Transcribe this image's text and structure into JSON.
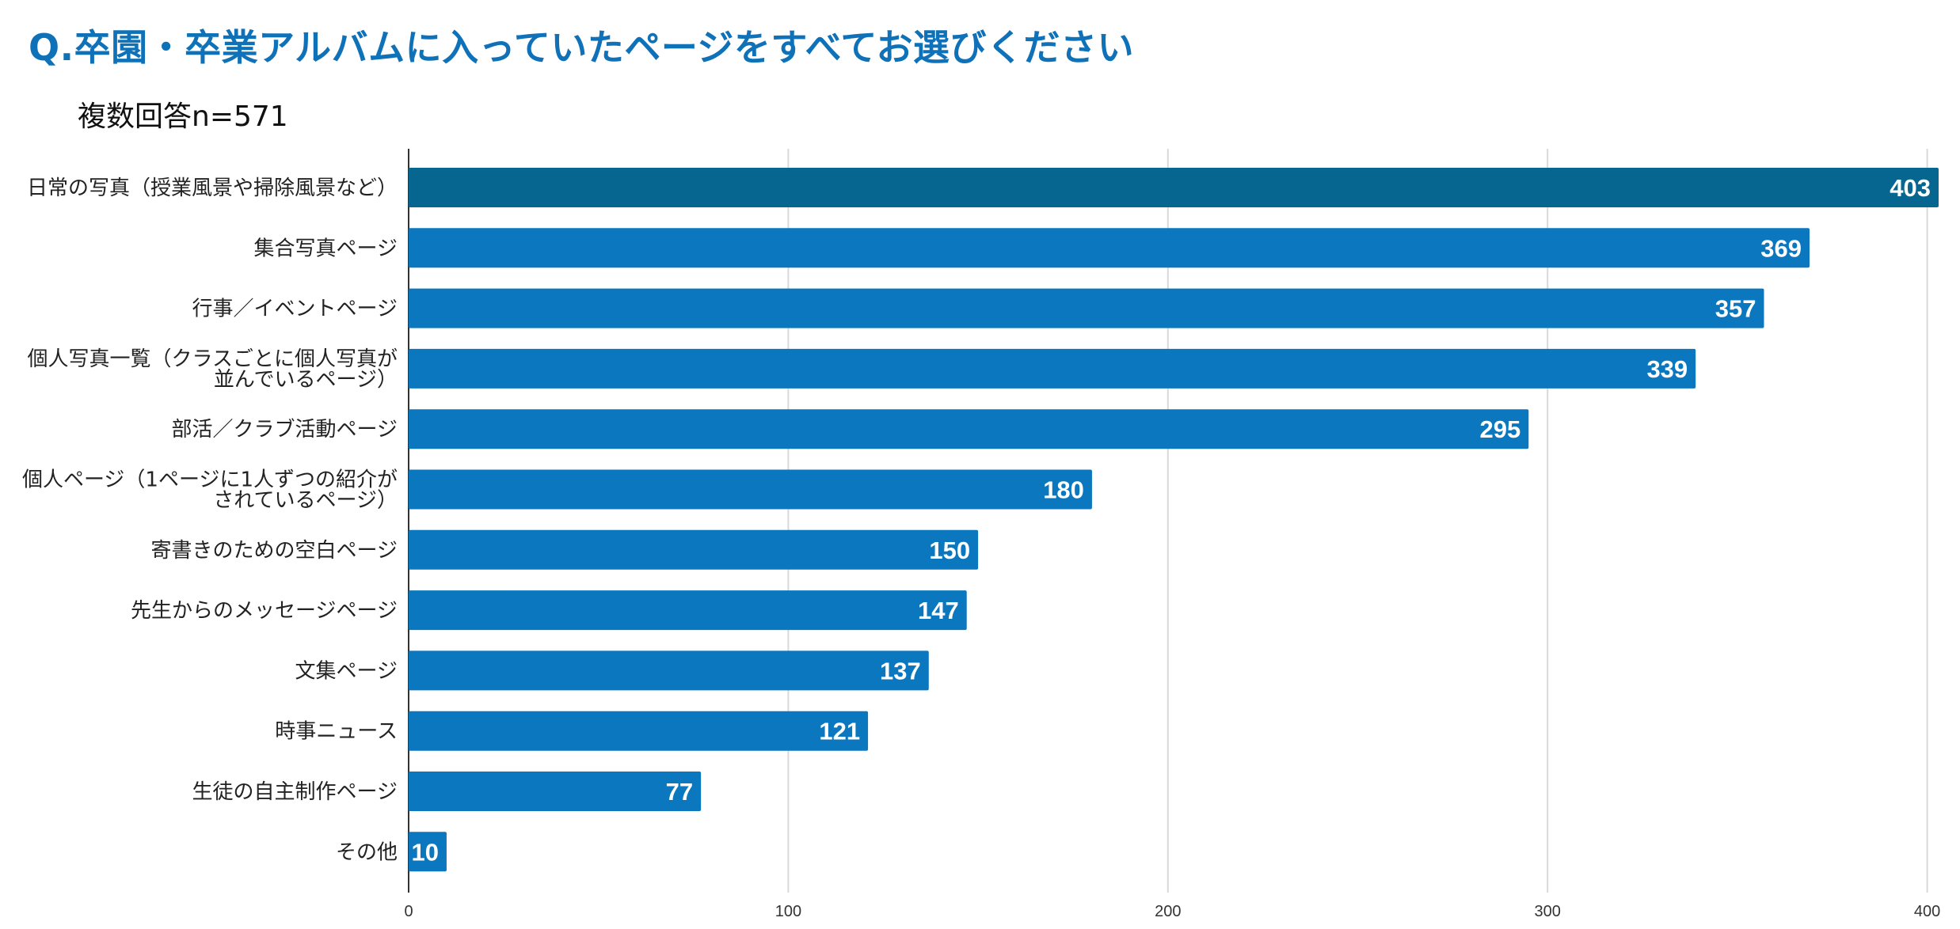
{
  "chart_data": {
    "type": "bar",
    "orientation": "horizontal",
    "title": "Q.卒園・卒業アルバムに入っていたページをすべてお選びください",
    "subtitle": "複数回答n=571",
    "categories": [
      [
        "日常の写真（授業風景や掃除風景など）"
      ],
      [
        "集合写真ページ"
      ],
      [
        "行事／イベントページ"
      ],
      [
        "個人写真一覧（クラスごとに個人写真が",
        "並んでいるページ）"
      ],
      [
        "部活／クラブ活動ページ"
      ],
      [
        "個人ページ（1ページに1人ずつの紹介が",
        "されているページ）"
      ],
      [
        "寄書きのための空白ページ"
      ],
      [
        "先生からのメッセージページ"
      ],
      [
        "文集ページ"
      ],
      [
        "時事ニュース"
      ],
      [
        "生徒の自主制作ページ"
      ],
      [
        "その他"
      ]
    ],
    "values": [
      403,
      369,
      357,
      339,
      295,
      180,
      150,
      147,
      137,
      121,
      77,
      10
    ],
    "xlim": [
      0,
      403
    ],
    "xticks": [
      0,
      100,
      200,
      300,
      400
    ],
    "grid": true,
    "colors": {
      "highlight": "#07668f",
      "bar": "#0a77bf",
      "grid": "#d9d9d9",
      "axis": "#333333"
    }
  }
}
